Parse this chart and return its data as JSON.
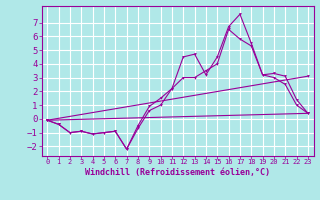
{
  "background_color": "#b0e8e8",
  "grid_color": "#ffffff",
  "line_color": "#990099",
  "xlabel": "Windchill (Refroidissement éolien,°C)",
  "xlabel_fontsize": 6,
  "ytick_fontsize": 6.5,
  "xtick_fontsize": 5,
  "xlim": [
    -0.5,
    23.5
  ],
  "ylim": [
    -2.7,
    8.2
  ],
  "yticks": [
    -2,
    -1,
    0,
    1,
    2,
    3,
    4,
    5,
    6,
    7
  ],
  "xticks": [
    0,
    1,
    2,
    3,
    4,
    5,
    6,
    7,
    8,
    9,
    10,
    11,
    12,
    13,
    14,
    15,
    16,
    17,
    18,
    19,
    20,
    21,
    22,
    23
  ],
  "series": [
    {
      "x": [
        0,
        1,
        2,
        3,
        4,
        5,
        6,
        7,
        8,
        9,
        10,
        11,
        12,
        13,
        14,
        15,
        16,
        17,
        18,
        19,
        20,
        21,
        22,
        23
      ],
      "y": [
        -0.1,
        -0.4,
        -1.0,
        -0.9,
        -1.1,
        -1.0,
        -0.9,
        -2.2,
        -0.7,
        0.6,
        1.0,
        2.2,
        3.0,
        3.0,
        3.5,
        4.0,
        6.5,
        5.8,
        5.3,
        3.2,
        3.3,
        3.1,
        1.4,
        0.4
      ]
    },
    {
      "x": [
        0,
        1,
        2,
        3,
        4,
        5,
        6,
        7,
        8,
        9,
        10,
        11,
        12,
        13,
        14,
        15,
        16,
        17,
        18,
        19,
        20,
        21,
        22,
        23
      ],
      "y": [
        -0.1,
        -0.4,
        -1.0,
        -0.9,
        -1.1,
        -1.0,
        -0.9,
        -2.2,
        -0.5,
        0.9,
        1.5,
        2.2,
        4.5,
        4.7,
        3.2,
        4.5,
        6.7,
        7.6,
        5.5,
        3.2,
        3.0,
        2.5,
        1.0,
        0.4
      ]
    },
    {
      "x": [
        0,
        23
      ],
      "y": [
        -0.1,
        0.4
      ]
    },
    {
      "x": [
        0,
        23
      ],
      "y": [
        -0.1,
        3.1
      ]
    }
  ]
}
